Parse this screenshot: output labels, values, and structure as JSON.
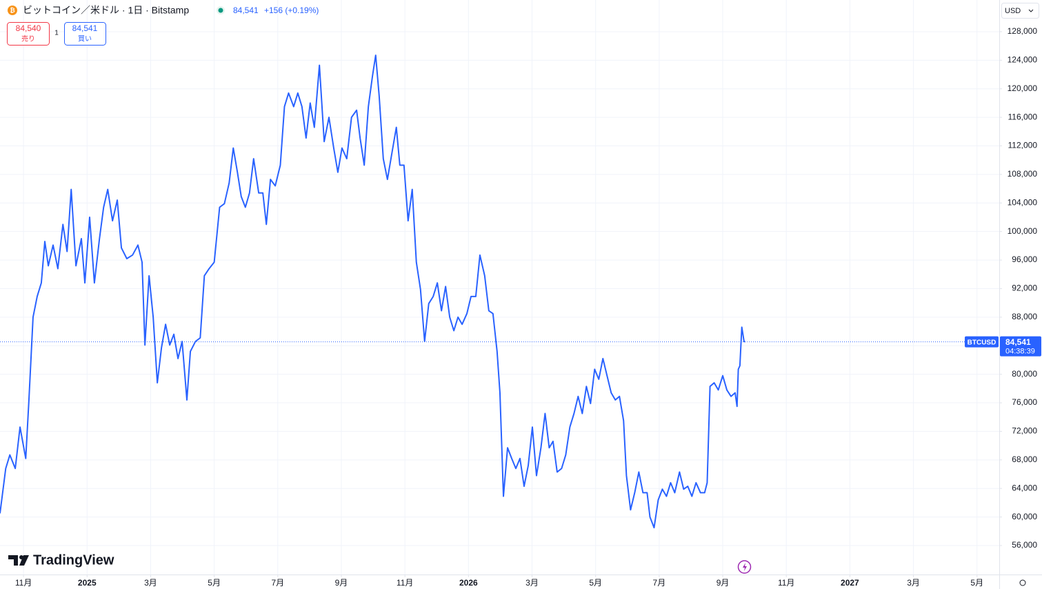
{
  "header": {
    "symbol": "ビットコイン／米ドル · 1日 · Bitstamp",
    "last": "84,541",
    "change": "+156 (+0.19%)"
  },
  "trade": {
    "sell_price": "84,540",
    "sell_label": "売り",
    "quantity": "1",
    "buy_price": "84,541",
    "buy_label": "買い"
  },
  "currency": "USD",
  "logo": "TradingView",
  "chart_data": {
    "type": "line",
    "x": [
      10.26,
      10.44,
      10.57,
      10.74,
      10.89,
      11.07,
      11.17,
      11.3,
      11.43,
      11.56,
      11.67,
      11.78,
      11.93,
      12.08,
      12.24,
      12.37,
      12.5,
      12.65,
      12.82,
      12.93,
      13.08,
      13.23,
      13.39,
      13.52,
      13.65,
      13.8,
      13.95,
      14.08,
      14.25,
      14.43,
      14.6,
      14.73,
      14.82,
      14.95,
      15.08,
      15.21,
      15.34,
      15.47,
      15.6,
      15.73,
      15.86,
      15.99,
      16.14,
      16.25,
      16.41,
      16.56,
      16.69,
      16.84,
      17.0,
      17.17,
      17.32,
      17.47,
      17.6,
      17.73,
      17.85,
      17.98,
      18.11,
      18.24,
      18.4,
      18.53,
      18.64,
      18.77,
      18.92,
      19.08,
      19.21,
      19.34,
      19.5,
      19.63,
      19.76,
      19.89,
      20.02,
      20.15,
      20.31,
      20.46,
      20.61,
      20.76,
      20.89,
      21.02,
      21.17,
      21.32,
      21.48,
      21.59,
      21.72,
      21.85,
      21.98,
      22.08,
      22.19,
      22.32,
      22.45,
      22.58,
      22.73,
      22.84,
      22.97,
      23.1,
      23.23,
      23.36,
      23.49,
      23.62,
      23.75,
      23.89,
      24.02,
      24.15,
      24.28,
      24.41,
      24.54,
      24.67,
      24.8,
      24.95,
      25.08,
      25.23,
      25.36,
      25.51,
      25.64,
      25.77,
      25.9,
      25.99,
      26.1,
      26.23,
      26.36,
      26.49,
      26.62,
      26.75,
      26.88,
      27.01,
      27.14,
      27.28,
      27.41,
      27.54,
      27.66,
      27.79,
      27.93,
      28.06,
      28.19,
      28.32,
      28.45,
      28.58,
      28.71,
      28.84,
      28.97,
      29.1,
      29.23,
      29.36,
      29.49,
      29.62,
      29.75,
      29.88,
      29.97,
      30.1,
      30.23,
      30.36,
      30.49,
      30.62,
      30.71,
      30.84,
      30.97,
      31.1,
      31.23,
      31.36,
      31.49,
      31.64,
      31.77,
      31.9,
      32.03,
      32.16,
      32.3,
      32.43,
      32.51,
      32.6,
      32.73,
      32.86,
      33.0,
      33.13,
      33.26,
      33.39,
      33.45,
      33.49,
      33.54,
      33.6,
      33.67,
      33.71
    ],
    "series": [
      {
        "name": "BTCUSD",
        "color": "#2962ff",
        "values": [
          60500,
          66800,
          68700,
          66800,
          72600,
          68200,
          76400,
          88000,
          90900,
          92800,
          98600,
          95200,
          98100,
          94800,
          101000,
          97200,
          105900,
          95200,
          99000,
          92800,
          102000,
          92800,
          99000,
          103400,
          105900,
          101500,
          104400,
          97700,
          96200,
          96700,
          98100,
          95700,
          84100,
          93800,
          88000,
          78800,
          83700,
          87000,
          84100,
          85600,
          82200,
          84600,
          76400,
          83200,
          84600,
          85100,
          93800,
          94800,
          95700,
          103400,
          103900,
          106800,
          111700,
          108300,
          104900,
          103400,
          105400,
          110200,
          105400,
          105400,
          101000,
          107300,
          106400,
          109300,
          117500,
          119400,
          117500,
          119400,
          117500,
          113100,
          118000,
          114600,
          123300,
          112600,
          116000,
          111700,
          108300,
          111700,
          110200,
          116000,
          117000,
          113100,
          109300,
          117500,
          121800,
          124700,
          119000,
          110200,
          107300,
          110700,
          114600,
          109300,
          109300,
          101500,
          105900,
          95700,
          91900,
          84600,
          89900,
          90900,
          92800,
          88900,
          92300,
          88000,
          86100,
          88000,
          87000,
          88500,
          90900,
          90900,
          96700,
          93800,
          88900,
          88500,
          83200,
          77400,
          62900,
          69700,
          68200,
          66800,
          68200,
          64300,
          67200,
          72600,
          65800,
          69700,
          74500,
          69700,
          70600,
          66300,
          66800,
          68700,
          72600,
          74500,
          76900,
          74500,
          78300,
          75900,
          80700,
          79300,
          82200,
          79800,
          77400,
          76400,
          76900,
          73500,
          65800,
          61000,
          63400,
          66300,
          63400,
          63400,
          60000,
          58500,
          62400,
          63900,
          62900,
          64800,
          63400,
          66300,
          63900,
          64300,
          62900,
          64800,
          63400,
          63400,
          64800,
          78300,
          78800,
          77800,
          79800,
          77800,
          76900,
          77400,
          75500,
          80700,
          81200,
          86600,
          84600,
          84541
        ]
      }
    ],
    "xlim": [
      10.26,
      41.7
    ],
    "xticks": [
      {
        "value": 11,
        "label": "11月"
      },
      {
        "value": 13,
        "label": "2025"
      },
      {
        "value": 15,
        "label": "3月"
      },
      {
        "value": 17,
        "label": "5月"
      },
      {
        "value": 19,
        "label": "7月"
      },
      {
        "value": 21,
        "label": "9月"
      },
      {
        "value": 23,
        "label": "11月"
      },
      {
        "value": 25,
        "label": "2026"
      },
      {
        "value": 27,
        "label": "3月"
      },
      {
        "value": 29,
        "label": "5月"
      },
      {
        "value": 31,
        "label": "7月"
      },
      {
        "value": 33,
        "label": "9月"
      },
      {
        "value": 35,
        "label": "11月"
      },
      {
        "value": 37,
        "label": "2027"
      },
      {
        "value": 39,
        "label": "3月"
      },
      {
        "value": 41,
        "label": "5月"
      }
    ],
    "ylim": [
      51940,
      132440
    ],
    "yticks": [
      {
        "value": 56000,
        "label": "56,000"
      },
      {
        "value": 60000,
        "label": "60,000"
      },
      {
        "value": 64000,
        "label": "64,000"
      },
      {
        "value": 68000,
        "label": "68,000"
      },
      {
        "value": 72000,
        "label": "72,000"
      },
      {
        "value": 76000,
        "label": "76,000"
      },
      {
        "value": 80000,
        "label": "80,000"
      },
      {
        "value": 84000,
        "label": "84,000"
      },
      {
        "value": 88000,
        "label": "88,000"
      },
      {
        "value": 92000,
        "label": "92,000"
      },
      {
        "value": 96000,
        "label": "96,000"
      },
      {
        "value": 100000,
        "label": "100,000"
      },
      {
        "value": 104000,
        "label": "104,000"
      },
      {
        "value": 108000,
        "label": "108,000"
      },
      {
        "value": 112000,
        "label": "112,000"
      },
      {
        "value": 116000,
        "label": "116,000"
      },
      {
        "value": 120000,
        "label": "120,000"
      },
      {
        "value": 124000,
        "label": "124,000"
      },
      {
        "value": 128000,
        "label": "128,000"
      }
    ],
    "grid": true,
    "price_tag": {
      "symbol": "BTCUSD",
      "value": 84541,
      "label": "84,541",
      "countdown": "04:38:39"
    }
  }
}
